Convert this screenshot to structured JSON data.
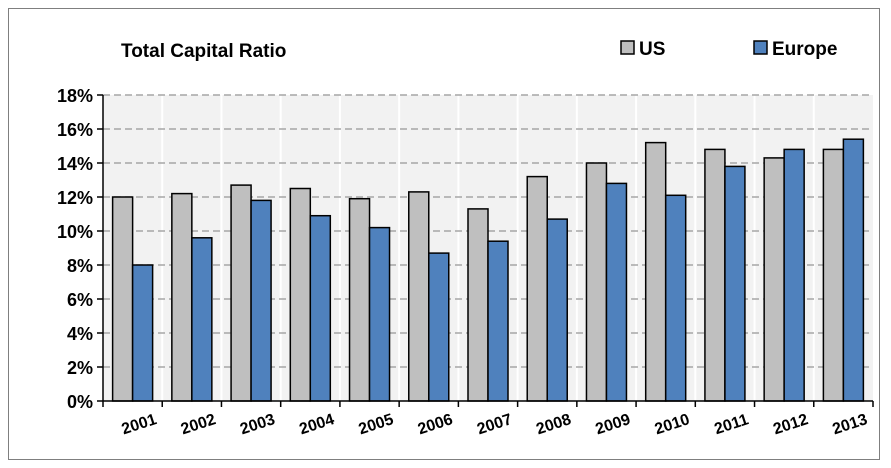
{
  "chart_data": {
    "type": "bar",
    "title": "Total Capital Ratio",
    "xlabel": "",
    "ylabel": "",
    "categories": [
      "2001",
      "2002",
      "2003",
      "2004",
      "2005",
      "2006",
      "2007",
      "2008",
      "2009",
      "2010",
      "2011",
      "2012",
      "2013"
    ],
    "series": [
      {
        "name": "US",
        "color": "#bfbfbf",
        "values": [
          12.0,
          12.2,
          12.7,
          12.5,
          11.9,
          12.3,
          11.3,
          13.2,
          14.0,
          15.2,
          14.8,
          14.3,
          14.8
        ]
      },
      {
        "name": "Europe",
        "color": "#4f81bd",
        "values": [
          8.0,
          9.6,
          11.8,
          10.9,
          10.2,
          8.7,
          9.4,
          10.7,
          12.8,
          12.1,
          13.8,
          14.8,
          15.4
        ]
      }
    ],
    "ylim": [
      0,
      18
    ],
    "ytick_step": 2,
    "ytick_format": "percent",
    "grid": true,
    "plot_background": "#f2f2f2",
    "legend": "top-right",
    "x_tick_rotation": "diagonal"
  }
}
